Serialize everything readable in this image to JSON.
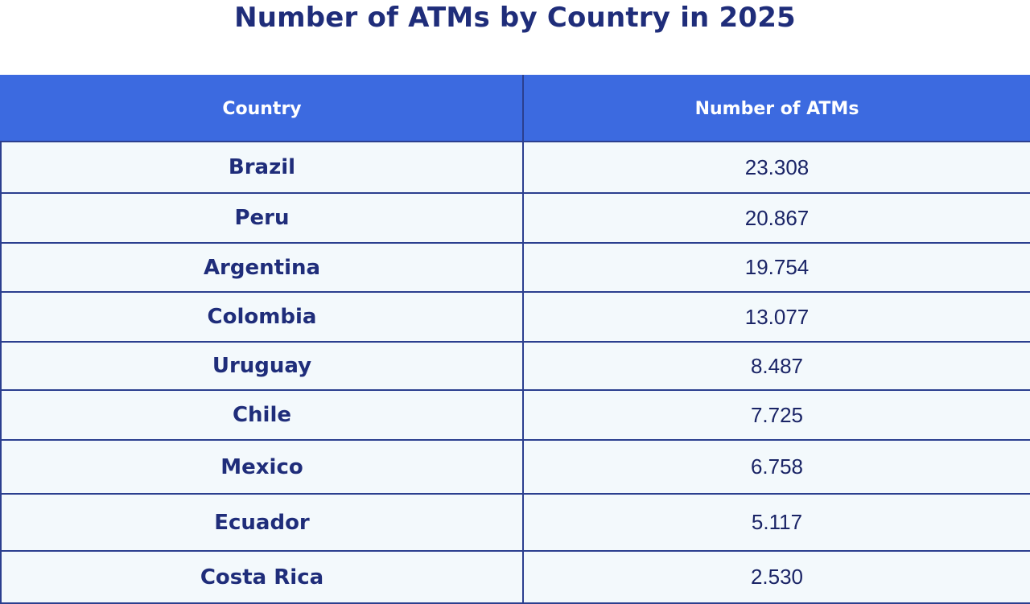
{
  "chart_data": {
    "type": "table",
    "title": "Number of ATMs by Country in 2025",
    "columns": [
      "Country",
      "Number of ATMs"
    ],
    "rows": [
      {
        "country": "Brazil",
        "atms": "23.308"
      },
      {
        "country": "Peru",
        "atms": "20.867"
      },
      {
        "country": "Argentina",
        "atms": "19.754"
      },
      {
        "country": "Colombia",
        "atms": "13.077"
      },
      {
        "country": "Uruguay",
        "atms": "8.487"
      },
      {
        "country": "Chile",
        "atms": "7.725"
      },
      {
        "country": "Mexico",
        "atms": "6.758"
      },
      {
        "country": "Ecuador",
        "atms": "5.117"
      },
      {
        "country": "Costa Rica",
        "atms": "2.530"
      }
    ],
    "colors": {
      "header_bg": "#3c6ae0",
      "header_text": "#ffffff",
      "title_text": "#1f2d7a",
      "row_bg": "#f3f9fc",
      "grid": "#2b3f8f"
    }
  }
}
